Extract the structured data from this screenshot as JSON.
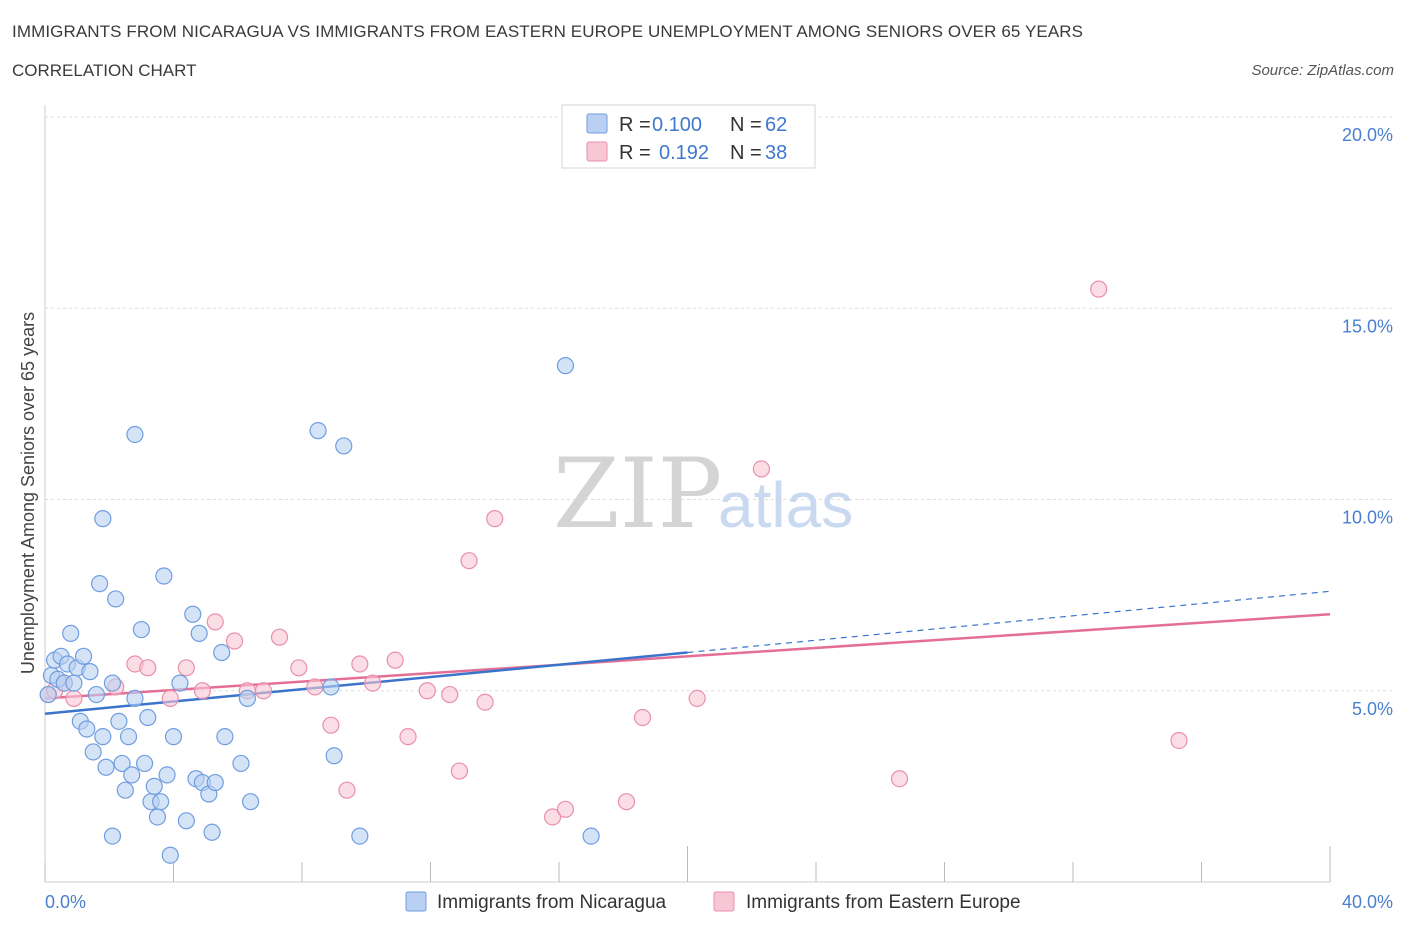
{
  "header": {
    "title": "IMMIGRANTS FROM NICARAGUA VS IMMIGRANTS FROM EASTERN EUROPE UNEMPLOYMENT AMONG SENIORS OVER 65 YEARS",
    "subtitle": "CORRELATION CHART",
    "source": "Source: ZipAtlas.com"
  },
  "watermark": {
    "zip": "ZIP",
    "atlas": "atlas"
  },
  "colors": {
    "series1_fill": "#b9d0f2",
    "series1_stroke": "#6f9ee0",
    "series1_line": "#3a74cc",
    "series2_fill": "#f8c7d6",
    "series2_stroke": "#e98fac",
    "series2_line": "#e36f96",
    "grid": "#dddddd",
    "axis_text": "#4a7fd0"
  },
  "legend": {
    "rows": [
      {
        "r_label": "R =",
        "r_value": "0.100",
        "n_label": "N =",
        "n_value": "62"
      },
      {
        "r_label": "R =",
        "r_value": "0.192",
        "n_label": "N =",
        "n_value": "38"
      }
    ]
  },
  "chart_data": {
    "type": "scatter",
    "title": "IMMIGRANTS FROM NICARAGUA VS IMMIGRANTS FROM EASTERN EUROPE UNEMPLOYMENT AMONG SENIORS OVER 65 YEARS",
    "xlabel": "",
    "ylabel": "Unemployment Among Seniors over 65 years",
    "xlim": [
      0,
      40
    ],
    "ylim": [
      0,
      20
    ],
    "x_tick_labels": {
      "left": "0.0%",
      "right": "40.0%"
    },
    "y_ticks": [
      {
        "value": 5,
        "label": "5.0%"
      },
      {
        "value": 10,
        "label": "10.0%"
      },
      {
        "value": 15,
        "label": "15.0%"
      },
      {
        "value": 20,
        "label": "20.0%"
      }
    ],
    "series": [
      {
        "name": "Immigrants from Nicaragua",
        "R": 0.1,
        "N": 62,
        "trend": {
          "x0": 0,
          "y0": 4.4,
          "x1": 20,
          "y1": 6.0,
          "dash_to_x": 40,
          "dash_to_y": 7.6
        },
        "points": [
          [
            0.2,
            5.4
          ],
          [
            0.3,
            5.8
          ],
          [
            0.4,
            5.3
          ],
          [
            0.5,
            5.9
          ],
          [
            0.6,
            5.2
          ],
          [
            0.7,
            5.7
          ],
          [
            0.8,
            6.5
          ],
          [
            0.9,
            5.2
          ],
          [
            1.0,
            5.6
          ],
          [
            1.1,
            4.2
          ],
          [
            1.2,
            5.9
          ],
          [
            1.3,
            4.0
          ],
          [
            1.4,
            5.5
          ],
          [
            1.5,
            3.4
          ],
          [
            1.6,
            4.9
          ],
          [
            1.7,
            7.8
          ],
          [
            1.8,
            3.8
          ],
          [
            1.8,
            9.5
          ],
          [
            1.9,
            3.0
          ],
          [
            2.1,
            5.2
          ],
          [
            2.2,
            7.4
          ],
          [
            2.3,
            4.2
          ],
          [
            2.4,
            3.1
          ],
          [
            2.5,
            2.4
          ],
          [
            2.6,
            3.8
          ],
          [
            2.7,
            2.8
          ],
          [
            2.8,
            4.8
          ],
          [
            2.8,
            11.7
          ],
          [
            3.0,
            6.6
          ],
          [
            3.1,
            3.1
          ],
          [
            3.2,
            4.3
          ],
          [
            3.3,
            2.1
          ],
          [
            3.4,
            2.5
          ],
          [
            3.5,
            1.7
          ],
          [
            3.6,
            2.1
          ],
          [
            3.7,
            8.0
          ],
          [
            3.8,
            2.8
          ],
          [
            4.0,
            3.8
          ],
          [
            4.2,
            5.2
          ],
          [
            4.4,
            1.6
          ],
          [
            4.6,
            7.0
          ],
          [
            4.7,
            2.7
          ],
          [
            4.8,
            6.5
          ],
          [
            4.9,
            2.6
          ],
          [
            5.1,
            2.3
          ],
          [
            5.3,
            2.6
          ],
          [
            5.5,
            6.0
          ],
          [
            5.6,
            3.8
          ],
          [
            6.1,
            3.1
          ],
          [
            6.3,
            4.8
          ],
          [
            6.4,
            2.1
          ],
          [
            8.5,
            11.8
          ],
          [
            8.9,
            5.1
          ],
          [
            9.0,
            3.3
          ],
          [
            9.3,
            11.4
          ],
          [
            16.2,
            13.5
          ],
          [
            3.9,
            0.7
          ],
          [
            5.2,
            1.3
          ],
          [
            2.1,
            1.2
          ],
          [
            9.8,
            1.2
          ],
          [
            17.0,
            1.2
          ],
          [
            0.1,
            4.9
          ]
        ]
      },
      {
        "name": "Immigrants from Eastern Europe",
        "R": 0.192,
        "N": 38,
        "trend": {
          "x0": 0,
          "y0": 4.8,
          "x1": 40,
          "y1": 7.0
        },
        "points": [
          [
            0.1,
            4.9
          ],
          [
            0.3,
            5.0
          ],
          [
            0.6,
            5.2
          ],
          [
            0.9,
            4.8
          ],
          [
            2.2,
            5.1
          ],
          [
            2.8,
            5.7
          ],
          [
            3.2,
            5.6
          ],
          [
            3.9,
            4.8
          ],
          [
            4.4,
            5.6
          ],
          [
            4.9,
            5.0
          ],
          [
            5.3,
            6.8
          ],
          [
            5.9,
            6.3
          ],
          [
            6.3,
            5.0
          ],
          [
            6.8,
            5.0
          ],
          [
            7.3,
            6.4
          ],
          [
            7.9,
            5.6
          ],
          [
            8.4,
            5.1
          ],
          [
            8.9,
            4.1
          ],
          [
            9.4,
            2.4
          ],
          [
            9.8,
            5.7
          ],
          [
            10.2,
            5.2
          ],
          [
            10.9,
            5.8
          ],
          [
            11.3,
            3.8
          ],
          [
            11.9,
            5.0
          ],
          [
            12.6,
            4.9
          ],
          [
            12.9,
            2.9
          ],
          [
            13.2,
            8.4
          ],
          [
            13.7,
            4.7
          ],
          [
            14.0,
            9.5
          ],
          [
            15.8,
            1.7
          ],
          [
            16.2,
            1.9
          ],
          [
            18.1,
            2.1
          ],
          [
            18.6,
            4.3
          ],
          [
            20.3,
            4.8
          ],
          [
            22.3,
            10.8
          ],
          [
            26.6,
            2.7
          ],
          [
            32.8,
            15.5
          ],
          [
            35.3,
            3.7
          ]
        ]
      }
    ],
    "legend_position": "top-center"
  },
  "bottom_legend": [
    {
      "label": "Immigrants from Nicaragua"
    },
    {
      "label": "Immigrants from Eastern Europe"
    }
  ]
}
